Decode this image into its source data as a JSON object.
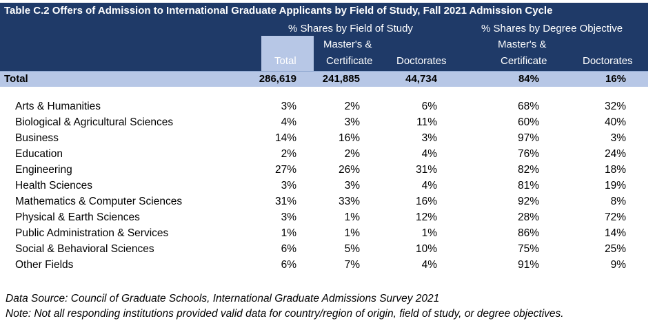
{
  "title": "Table C.2 Offers of Admission to International Graduate Applicants by Field of Study, Fall 2021 Admission Cycle",
  "header": {
    "group1": "% Shares by Field of Study",
    "group2": "% Shares by Degree Objective",
    "col_total": "Total",
    "col_masters_line1": "Master's &",
    "col_masters_line2": "Certificate",
    "col_doctorates": "Doctorates",
    "col_masters2_line1": "Master's &",
    "col_masters2_line2": "Certificate",
    "col_doctorates2": "Doctorates"
  },
  "total_row": {
    "label": "Total",
    "total": "286,619",
    "masters": "241,885",
    "doctorates": "44,734",
    "masters_pct": "84%",
    "doctorates_pct": "16%"
  },
  "rows": [
    {
      "field": "Arts & Humanities",
      "total": "3%",
      "masters": "2%",
      "doctorates": "6%",
      "masters_pct": "68%",
      "doctorates_pct": "32%"
    },
    {
      "field": "Biological & Agricultural Sciences",
      "total": "4%",
      "masters": "3%",
      "doctorates": "11%",
      "masters_pct": "60%",
      "doctorates_pct": "40%"
    },
    {
      "field": "Business",
      "total": "14%",
      "masters": "16%",
      "doctorates": "3%",
      "masters_pct": "97%",
      "doctorates_pct": "3%"
    },
    {
      "field": "Education",
      "total": "2%",
      "masters": "2%",
      "doctorates": "4%",
      "masters_pct": "76%",
      "doctorates_pct": "24%"
    },
    {
      "field": "Engineering",
      "total": "27%",
      "masters": "26%",
      "doctorates": "31%",
      "masters_pct": "82%",
      "doctorates_pct": "18%"
    },
    {
      "field": "Health Sciences",
      "total": "3%",
      "masters": "3%",
      "doctorates": "4%",
      "masters_pct": "81%",
      "doctorates_pct": "19%"
    },
    {
      "field": "Mathematics & Computer Sciences",
      "total": "31%",
      "masters": "33%",
      "doctorates": "16%",
      "masters_pct": "92%",
      "doctorates_pct": "8%"
    },
    {
      "field": "Physical & Earth Sciences",
      "total": "3%",
      "masters": "1%",
      "doctorates": "12%",
      "masters_pct": "28%",
      "doctorates_pct": "72%"
    },
    {
      "field": "Public Administration & Services",
      "total": "1%",
      "masters": "1%",
      "doctorates": "1%",
      "masters_pct": "86%",
      "doctorates_pct": "14%"
    },
    {
      "field": "Social & Behavioral Sciences",
      "total": "6%",
      "masters": "5%",
      "doctorates": "10%",
      "masters_pct": "75%",
      "doctorates_pct": "25%"
    },
    {
      "field": "Other Fields",
      "total": "6%",
      "masters": "7%",
      "doctorates": "4%",
      "masters_pct": "91%",
      "doctorates_pct": "9%"
    }
  ],
  "footnotes": {
    "source": "Data Source: Council of Graduate Schools, International Graduate Admissions Survey 2021",
    "note": "Note: Not all responding institutions provided valid data for country/region of origin, field of study, or degree objectives."
  },
  "colors": {
    "header_navy": "#1f3a68",
    "highlight_blue": "#b7c7e6"
  }
}
